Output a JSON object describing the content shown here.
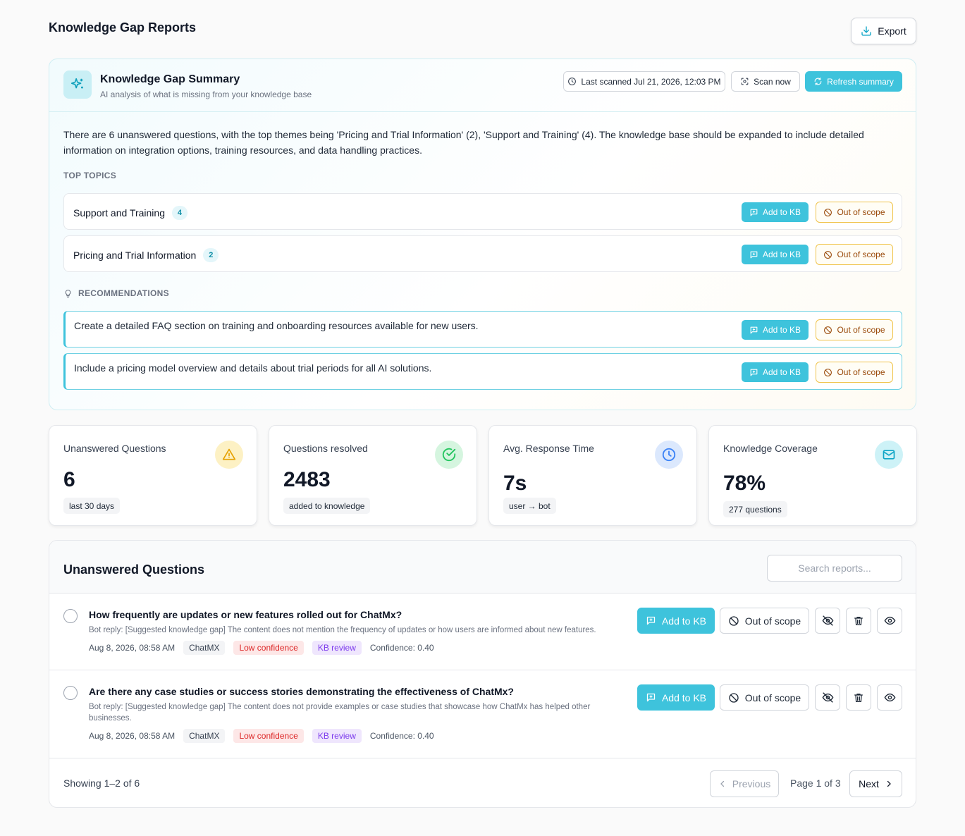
{
  "page": {
    "title": "Knowledge Gap Reports",
    "export_label": "Export"
  },
  "summary": {
    "title": "Knowledge Gap Summary",
    "subtitle": "AI analysis of what is missing from your knowledge base",
    "last_scanned": "Last scanned Jul 21, 2026, 12:03 PM",
    "scan_now_label": "Scan now",
    "refresh_label": "Refresh summary",
    "text": "There are 6 unanswered questions, with the top themes being 'Pricing and Trial Information' (2), 'Support and Training' (4). The knowledge base should be expanded to include detailed information on integration options, training resources, and data handling practices.",
    "top_topics_label": "TOP TOPICS",
    "topics": [
      {
        "name": "Support and Training",
        "count": "4"
      },
      {
        "name": "Pricing and Trial Information",
        "count": "2"
      }
    ],
    "recommendations_label": "RECOMMENDATIONS",
    "recommendations": [
      "Create a detailed FAQ section on training and onboarding resources available for new users.",
      "Include a pricing model overview and details about trial periods for all AI solutions."
    ],
    "add_label": "Add to KB",
    "oos_label": "Out of scope"
  },
  "stats": [
    {
      "label": "Unanswered Questions",
      "value": "6",
      "chip": "last 30 days",
      "icon": "warning-icon",
      "color": "#f4b400"
    },
    {
      "label": "Questions resolved",
      "value": "2483",
      "chip": "added to knowledge",
      "icon": "check-circle-icon",
      "color": "#22c55e"
    },
    {
      "label": "Avg. Response Time",
      "value": "7s",
      "chip": "user → bot",
      "icon": "clock-icon",
      "color": "#3b82f6"
    },
    {
      "label": "Knowledge Coverage",
      "value": "78%",
      "chip": "277 questions",
      "icon": "mail-icon",
      "color": "#0ea5c6"
    }
  ],
  "questions": {
    "title": "Unanswered Questions",
    "search_placeholder": "Search reports...",
    "add_label": "Add to KB",
    "oos_label": "Out of scope",
    "items": [
      {
        "question": "How frequently are updates or new features rolled out for ChatMx?",
        "reply": "Bot reply: [Suggested knowledge gap] The content does not mention the frequency of updates or how users are informed about new features.",
        "date": "Aug 8, 2026, 08:58 AM",
        "bot": "ChatMX",
        "confidence_tag": "Low confidence",
        "review_tag": "KB review",
        "confidence": "Confidence: 0.40"
      },
      {
        "question": "Are there any case studies or success stories demonstrating the effectiveness of ChatMx?",
        "reply": "Bot reply: [Suggested knowledge gap] The content does not provide examples or case studies that showcase how ChatMx has helped other businesses.",
        "date": "Aug 8, 2026, 08:58 AM",
        "bot": "ChatMX",
        "confidence_tag": "Low confidence",
        "review_tag": "KB review",
        "confidence": "Confidence: 0.40"
      }
    ],
    "showing": "Showing 1–2 of  6",
    "previous_label": "Previous",
    "page_info": "Page 1 of 3",
    "next_label": "Next"
  }
}
